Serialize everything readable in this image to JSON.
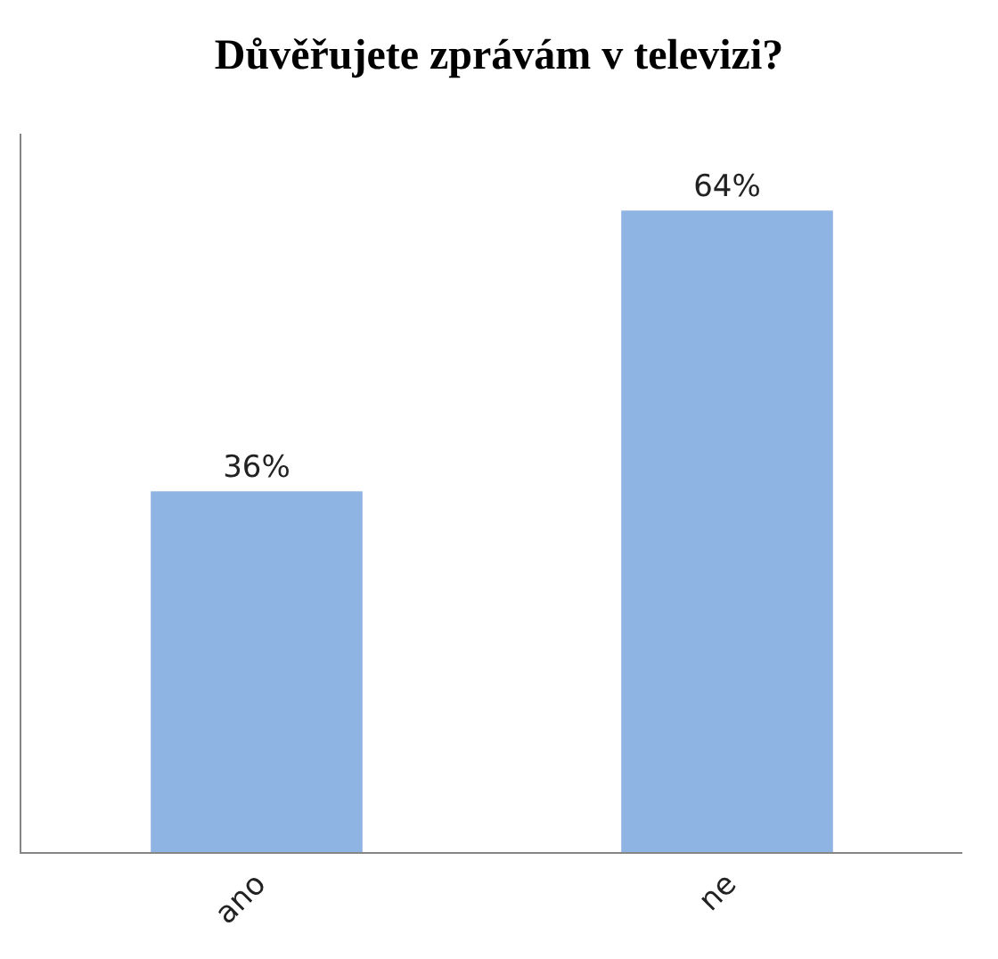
{
  "chart_data": {
    "type": "bar",
    "title": "Důvěřujete zprávám v televizi?",
    "categories": [
      "ano",
      "ne"
    ],
    "values": [
      36,
      64
    ],
    "value_labels": [
      "36%",
      "64%"
    ],
    "color": "#8eb4e3",
    "legend": false
  }
}
